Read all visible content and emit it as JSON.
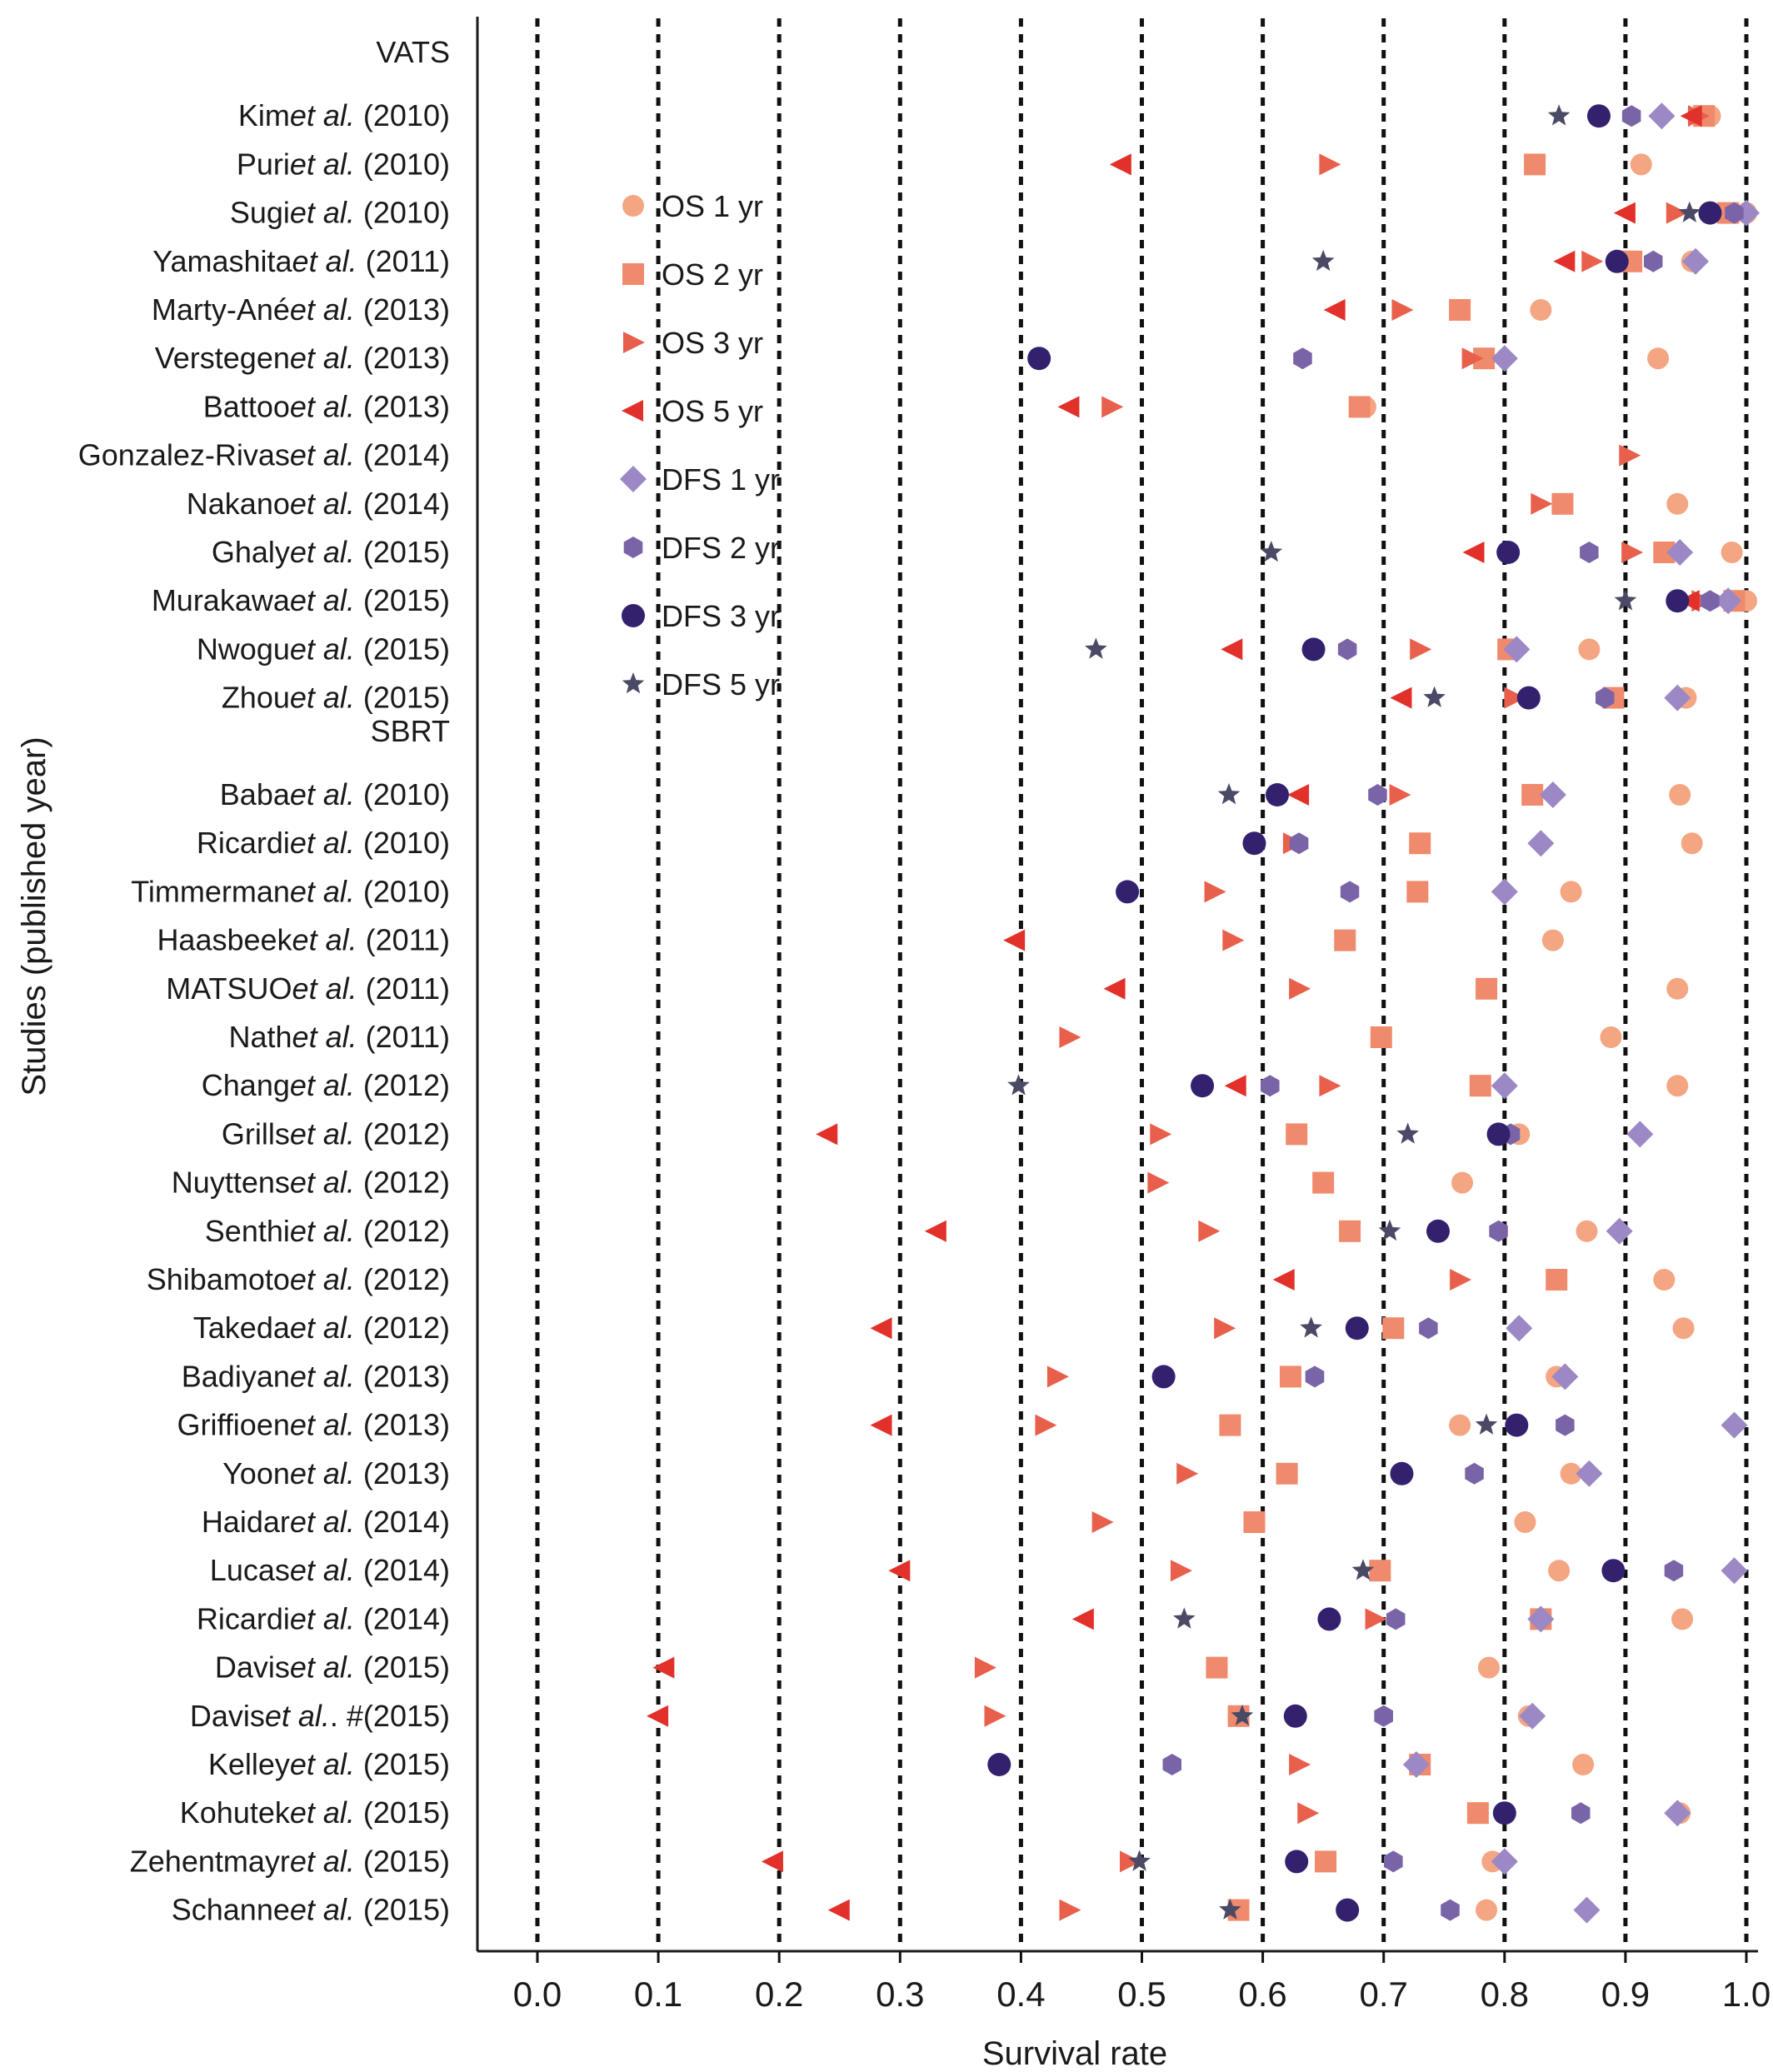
{
  "chart_data": {
    "type": "scatter",
    "title": "",
    "xlabel": "Survival rate",
    "ylabel": "Studies (published year)",
    "xlim": [
      0.0,
      1.0
    ],
    "xticks": [
      "0.0",
      "0.1",
      "0.2",
      "0.3",
      "0.4",
      "0.5",
      "0.6",
      "0.7",
      "0.8",
      "0.9",
      "1.0"
    ],
    "grid": "vertical dotted",
    "legend_position": "top-left inside",
    "series": [
      {
        "key": "os1",
        "name": "OS 1 yr",
        "marker": "circle",
        "color": "#f4a582"
      },
      {
        "key": "os2",
        "name": "OS 2 yr",
        "marker": "square",
        "color": "#f08a6c"
      },
      {
        "key": "os3",
        "name": "OS 3 yr",
        "marker": "triangle-up",
        "color": "#e8604c"
      },
      {
        "key": "os5",
        "name": "OS 5 yr",
        "marker": "triangle-down",
        "color": "#e2302a"
      },
      {
        "key": "dfs1",
        "name": "DFS 1 yr",
        "marker": "diamond",
        "color": "#9c88c4"
      },
      {
        "key": "dfs2",
        "name": "DFS 2 yr",
        "marker": "hexagon",
        "color": "#7a64a8"
      },
      {
        "key": "dfs3",
        "name": "DFS 3 yr",
        "marker": "circle",
        "color": "#33216e"
      },
      {
        "key": "dfs5",
        "name": "DFS 5 yr",
        "marker": "star",
        "color": "#4b4a66"
      }
    ],
    "rows": [
      {
        "type": "group",
        "label": "VATS"
      },
      {
        "name": "Kim",
        "year": "(2010)",
        "os1": 0.97,
        "os2": 0.965,
        "os3": 0.96,
        "os5": 0.955,
        "dfs1": 0.93,
        "dfs2": 0.905,
        "dfs3": 0.878,
        "dfs5": 0.845
      },
      {
        "name": "Puri",
        "year": "(2010)",
        "os1": 0.913,
        "os2": 0.825,
        "os3": 0.655,
        "os5": 0.483
      },
      {
        "name": "Sugi",
        "year": "(2010)",
        "os1": 1.0,
        "os2": 0.985,
        "os3": 0.942,
        "os5": 0.9,
        "dfs1": 1.0,
        "dfs2": 0.99,
        "dfs3": 0.97,
        "dfs5": 0.953
      },
      {
        "name": "Yamashita",
        "year": "(2011)",
        "os1": 0.955,
        "os2": 0.905,
        "os3": 0.872,
        "os5": 0.85,
        "dfs1": 0.958,
        "dfs2": 0.923,
        "dfs3": 0.893,
        "dfs5": 0.65
      },
      {
        "name": "Marty-Ané",
        "year": "(2013)",
        "os1": 0.83,
        "os2": 0.763,
        "os3": 0.715,
        "os5": 0.66
      },
      {
        "name": "Verstegen",
        "year": "(2013)",
        "os1": 0.927,
        "os2": 0.783,
        "os3": 0.773,
        "dfs1": 0.8,
        "dfs2": 0.633,
        "dfs3": 0.415
      },
      {
        "name": "Battoo",
        "year": "(2013)",
        "os1": 0.685,
        "os2": 0.68,
        "os3": 0.475,
        "os5": 0.44
      },
      {
        "name": "Gonzalez-Rivas",
        "year": "(2014)",
        "os3": 0.903
      },
      {
        "name": "Nakano",
        "year": "(2014)",
        "os1": 0.943,
        "os2": 0.848,
        "os3": 0.83
      },
      {
        "name": "Ghaly",
        "year": "(2015)",
        "os1": 0.988,
        "os2": 0.932,
        "os3": 0.905,
        "os5": 0.775,
        "dfs1": 0.945,
        "dfs2": 0.87,
        "dfs3": 0.803,
        "dfs5": 0.607
      },
      {
        "name": "Murakawa",
        "year": "(2015)",
        "os1": 1.0,
        "os2": 0.99,
        "os3": 0.963,
        "os5": 0.953,
        "dfs1": 0.985,
        "dfs2": 0.97,
        "dfs3": 0.943,
        "dfs5": 0.9
      },
      {
        "name": "Nwogu",
        "year": "(2015)",
        "os1": 0.87,
        "os2": 0.803,
        "os3": 0.73,
        "os5": 0.575,
        "dfs1": 0.81,
        "dfs2": 0.67,
        "dfs3": 0.642,
        "dfs5": 0.462
      },
      {
        "name": "Zhou",
        "year": "(2015)",
        "os1": 0.95,
        "os2": 0.89,
        "os3": 0.808,
        "os5": 0.715,
        "dfs1": 0.943,
        "dfs2": 0.883,
        "dfs3": 0.82,
        "dfs5": 0.742
      },
      {
        "type": "group",
        "label": "SBRT"
      },
      {
        "name": "Baba",
        "year": "(2010)",
        "os1": 0.945,
        "os2": 0.823,
        "os3": 0.713,
        "os5": 0.63,
        "dfs1": 0.84,
        "dfs2": 0.695,
        "dfs3": 0.612,
        "dfs5": 0.572
      },
      {
        "name": "Ricardi",
        "year": "(2010)",
        "os1": 0.955,
        "os2": 0.73,
        "os3": 0.625,
        "dfs1": 0.83,
        "dfs2": 0.63,
        "dfs3": 0.593
      },
      {
        "name": "Timmerman",
        "year": "(2010)",
        "os1": 0.855,
        "os2": 0.728,
        "os3": 0.56,
        "dfs1": 0.8,
        "dfs2": 0.672,
        "dfs3": 0.488
      },
      {
        "name": "Haasbeek",
        "year": "(2011)",
        "os1": 0.84,
        "os2": 0.668,
        "os3": 0.575,
        "os5": 0.395
      },
      {
        "name": "MATSUO",
        "year": "(2011)",
        "os1": 0.943,
        "os2": 0.785,
        "os3": 0.63,
        "os5": 0.478
      },
      {
        "name": "Nath",
        "year": "(2011)",
        "os1": 0.888,
        "os2": 0.698,
        "os3": 0.44
      },
      {
        "name": "Chang",
        "year": "(2012)",
        "os1": 0.943,
        "os2": 0.78,
        "os3": 0.655,
        "os5": 0.578,
        "dfs1": 0.8,
        "dfs2": 0.606,
        "dfs3": 0.55,
        "dfs5": 0.398
      },
      {
        "name": "Grills",
        "year": "(2012)",
        "os1": 0.812,
        "os2": 0.628,
        "os3": 0.515,
        "os5": 0.24,
        "dfs1": 0.912,
        "dfs2": 0.805,
        "dfs3": 0.795,
        "dfs5": 0.72
      },
      {
        "name": "Nuyttens",
        "year": "(2012)",
        "os1": 0.765,
        "os2": 0.65,
        "os3": 0.513
      },
      {
        "name": "Senthi",
        "year": "(2012)",
        "os1": 0.868,
        "os2": 0.672,
        "os3": 0.555,
        "os5": 0.33,
        "dfs1": 0.895,
        "dfs2": 0.795,
        "dfs3": 0.745,
        "dfs5": 0.705
      },
      {
        "name": "Shibamoto",
        "year": "(2012)",
        "os1": 0.932,
        "os2": 0.843,
        "os3": 0.763,
        "os5": 0.618
      },
      {
        "name": "Takeda",
        "year": "(2012)",
        "os1": 0.948,
        "os2": 0.708,
        "os3": 0.568,
        "os5": 0.285,
        "dfs1": 0.812,
        "dfs2": 0.737,
        "dfs3": 0.678,
        "dfs5": 0.64
      },
      {
        "name": "Badiyan",
        "year": "(2013)",
        "os1": 0.843,
        "os2": 0.623,
        "os3": 0.43,
        "dfs1": 0.85,
        "dfs2": 0.643,
        "dfs3": 0.518
      },
      {
        "name": "Griffioen",
        "year": "(2013)",
        "os1": 0.763,
        "os2": 0.573,
        "os3": 0.42,
        "os5": 0.285,
        "dfs1": 0.99,
        "dfs2": 0.85,
        "dfs3": 0.81,
        "dfs5": 0.785
      },
      {
        "name": "Yoon",
        "year": "(2013)",
        "os1": 0.855,
        "os2": 0.62,
        "os3": 0.537,
        "dfs1": 0.87,
        "dfs2": 0.775,
        "dfs3": 0.715
      },
      {
        "name": "Haidar",
        "year": "(2014)",
        "os1": 0.817,
        "os2": 0.593,
        "os3": 0.467
      },
      {
        "name": "Lucas",
        "year": "(2014)",
        "os1": 0.845,
        "os2": 0.697,
        "os3": 0.532,
        "os5": 0.3,
        "dfs1": 0.99,
        "dfs2": 0.94,
        "dfs3": 0.89,
        "dfs5": 0.683
      },
      {
        "name": "Ricardi",
        "year": "(2014)",
        "os1": 0.947,
        "os2": 0.83,
        "os3": 0.693,
        "os5": 0.452,
        "dfs1": 0.83,
        "dfs2": 0.71,
        "dfs3": 0.655,
        "dfs5": 0.535
      },
      {
        "name": "Davis",
        "year": "(2015)",
        "os1": 0.787,
        "os2": 0.562,
        "os3": 0.37,
        "os5": 0.105
      },
      {
        "name": "Davis",
        "year": "(2015)",
        "suffix": "#",
        "os1": 0.82,
        "os2": 0.58,
        "os3": 0.378,
        "os5": 0.1,
        "dfs1": 0.823,
        "dfs2": 0.7,
        "dfs3": 0.627,
        "dfs5": 0.583
      },
      {
        "name": "Kelley",
        "year": "(2015)",
        "os1": 0.865,
        "os2": 0.73,
        "os3": 0.63,
        "dfs1": 0.727,
        "dfs2": 0.525,
        "dfs3": 0.382
      },
      {
        "name": "Kohutek",
        "year": "(2015)",
        "os1": 0.945,
        "os2": 0.778,
        "os3": 0.637,
        "dfs1": 0.943,
        "dfs2": 0.863,
        "dfs3": 0.8
      },
      {
        "name": "Zehentmayr",
        "year": "(2015)",
        "os1": 0.79,
        "os2": 0.652,
        "os3": 0.49,
        "os5": 0.195,
        "dfs1": 0.8,
        "dfs2": 0.708,
        "dfs3": 0.628,
        "dfs5": 0.498
      },
      {
        "name": "Schanne",
        "year": "(2015)",
        "os1": 0.785,
        "os2": 0.58,
        "os3": 0.44,
        "os5": 0.25,
        "dfs1": 0.868,
        "dfs2": 0.755,
        "dfs3": 0.67,
        "dfs5": 0.573
      }
    ],
    "etal": "et al."
  }
}
